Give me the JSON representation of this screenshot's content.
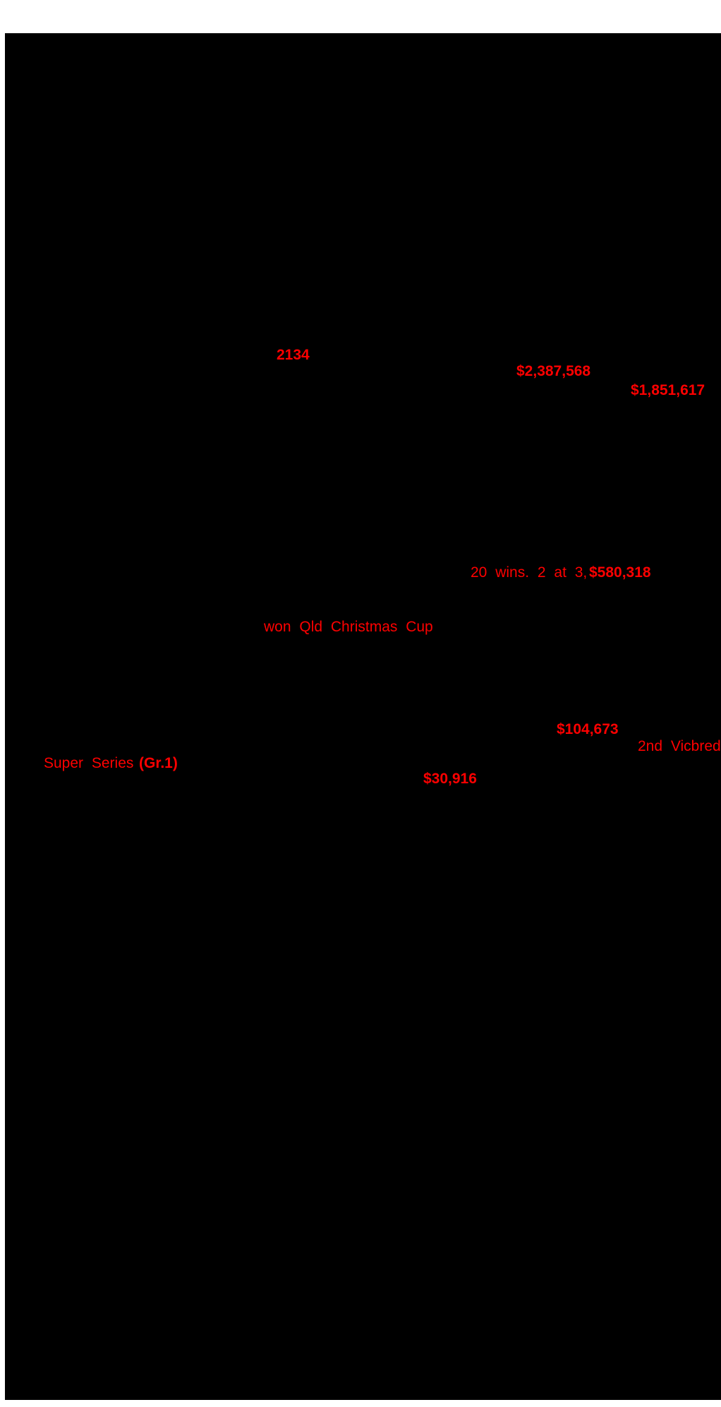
{
  "page": {
    "background_color": "#ffffff",
    "document_color": "#000000",
    "accent_color": "#fe0000"
  },
  "highlights": {
    "race_time": "2134",
    "earnings_1": "$2,387,568",
    "earnings_2": "$1,851,617",
    "wins_summary": "20 wins. 2 at 3,",
    "wins_earnings": "$580,318",
    "race_won": "won Qld Christmas Cup",
    "earnings_3": "$104,673",
    "placing": "2nd Vicbred",
    "series_name": "Super Series",
    "series_grade": "(Gr.1)",
    "earnings_4": "$30,916"
  }
}
